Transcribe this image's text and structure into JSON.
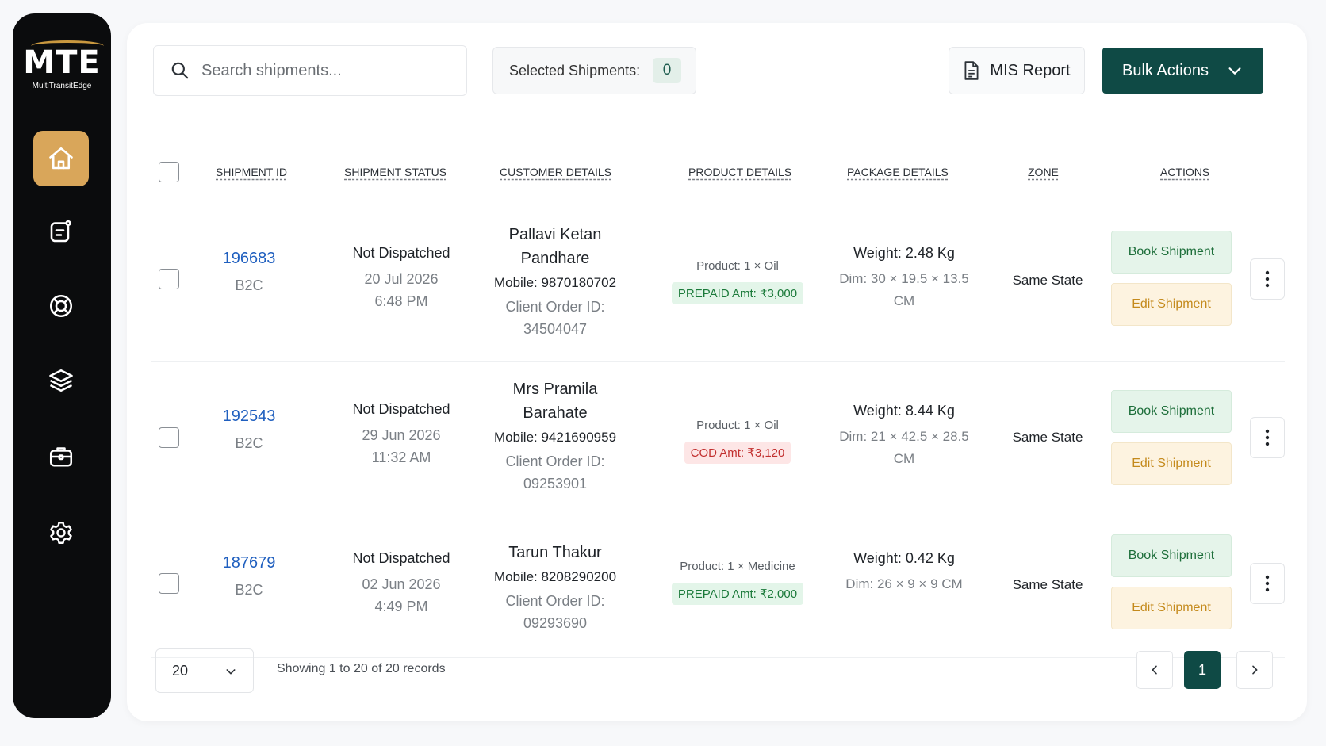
{
  "brand": {
    "logo_text": "MTE",
    "logo_subtitle": "MultiTransitEdge",
    "accent": "#d9a65a",
    "primary": "#0f4a45"
  },
  "sidebar": {
    "items": [
      {
        "icon": "home-icon",
        "active": true
      },
      {
        "icon": "orders-icon",
        "active": false
      },
      {
        "icon": "support-icon",
        "active": false
      },
      {
        "icon": "layers-icon",
        "active": false
      },
      {
        "icon": "briefcase-icon",
        "active": false
      },
      {
        "icon": "settings-icon",
        "active": false
      }
    ]
  },
  "toolbar": {
    "search_placeholder": "Search shipments...",
    "selected_label": "Selected Shipments:",
    "selected_count": "0",
    "mis_report_label": "MIS Report",
    "bulk_actions_label": "Bulk Actions"
  },
  "table": {
    "headers": [
      "SHIPMENT ID",
      "SHIPMENT STATUS",
      "CUSTOMER DETAILS",
      "PRODUCT DETAILS",
      "PACKAGE DETAILS",
      "ZONE",
      "ACTIONS"
    ],
    "rows": [
      {
        "id": "196683",
        "type": "B2C",
        "status": "Not Dispatched",
        "date": "20 Jul 2026",
        "time": "6:48 PM",
        "customer": "Pallavi Ketan Pandhare",
        "mobile": "Mobile:  9870180702",
        "order_label": "Client Order ID:",
        "order_id": "34504047",
        "product": "Product:  1 × Oil",
        "amount": "PREPAID Amt: ₹3,000",
        "payment": "prepaid",
        "weight": "Weight: 2.48 Kg",
        "dim": "Dim: 30 × 19.5 × 13.5 CM",
        "zone": "Same State",
        "book_label": "Book Shipment",
        "edit_label": "Edit Shipment"
      },
      {
        "id": "192543",
        "type": "B2C",
        "status": "Not Dispatched",
        "date": "29 Jun 2026",
        "time": "11:32 AM",
        "customer": "Mrs Pramila Barahate",
        "mobile": "Mobile:  9421690959",
        "order_label": "Client Order ID:",
        "order_id": "09253901",
        "product": "Product:  1 × Oil",
        "amount": "COD Amt: ₹3,120",
        "payment": "cod",
        "weight": "Weight: 8.44 Kg",
        "dim": "Dim: 21 × 42.5 × 28.5 CM",
        "zone": "Same State",
        "book_label": "Book Shipment",
        "edit_label": "Edit Shipment"
      },
      {
        "id": "187679",
        "type": "B2C",
        "status": "Not Dispatched",
        "date": "02 Jun 2026",
        "time": "4:49 PM",
        "customer": "Tarun Thakur",
        "mobile": "Mobile:  8208290200",
        "order_label": "Client Order ID:",
        "order_id": "09293690",
        "product": "Product:  1 × Medicine",
        "amount": "PREPAID Amt: ₹2,000",
        "payment": "prepaid",
        "weight": "Weight: 0.42 Kg",
        "dim": "Dim: 26 × 9 × 9 CM",
        "zone": "Same State",
        "book_label": "Book Shipment",
        "edit_label": "Edit Shipment"
      }
    ]
  },
  "footer": {
    "page_size": "20",
    "records_text": "Showing 1 to 20 of 20 records",
    "current_page": "1"
  }
}
